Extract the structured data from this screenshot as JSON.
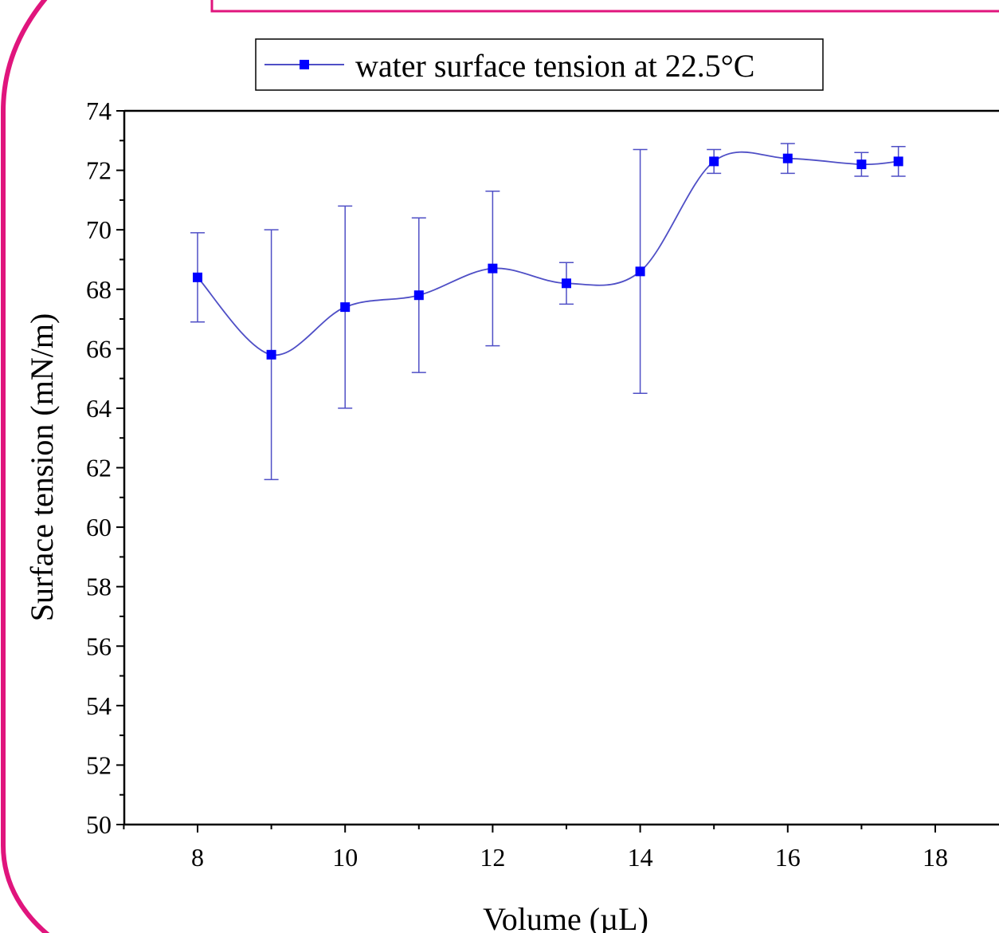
{
  "chart_data": {
    "type": "line",
    "title": "",
    "xlabel": "Volume (µL)",
    "ylabel": "Surface tension (mN/m)",
    "xlim": [
      7,
      19
    ],
    "ylim": [
      50,
      74
    ],
    "x_ticks": [
      "8",
      "10",
      "12",
      "14",
      "16",
      "18"
    ],
    "y_ticks": [
      "50",
      "52",
      "54",
      "56",
      "58",
      "60",
      "62",
      "64",
      "66",
      "68",
      "70",
      "72",
      "74"
    ],
    "grid": false,
    "smooth_line": true,
    "error_bars": true,
    "legend_position": "top-center",
    "series": [
      {
        "name": "water surface tension at 22.5°C",
        "marker": "square",
        "color": "#0000ff",
        "line_color": "#4f4fc6",
        "x": [
          8,
          9,
          10,
          11,
          12,
          13,
          14,
          15,
          16,
          17,
          17.5
        ],
        "y": [
          68.4,
          65.8,
          67.4,
          67.8,
          68.7,
          68.2,
          68.6,
          72.3,
          72.4,
          72.2,
          72.3
        ],
        "y_err_low": [
          66.9,
          61.6,
          64.0,
          65.2,
          66.1,
          67.5,
          64.5,
          71.9,
          71.9,
          71.8,
          71.8
        ],
        "y_err_high": [
          69.9,
          70.0,
          70.8,
          70.4,
          71.3,
          68.9,
          72.7,
          72.7,
          72.9,
          72.6,
          72.8
        ]
      }
    ]
  },
  "decor": {
    "frame_color": "#e0157d",
    "axis_color": "#000000"
  }
}
